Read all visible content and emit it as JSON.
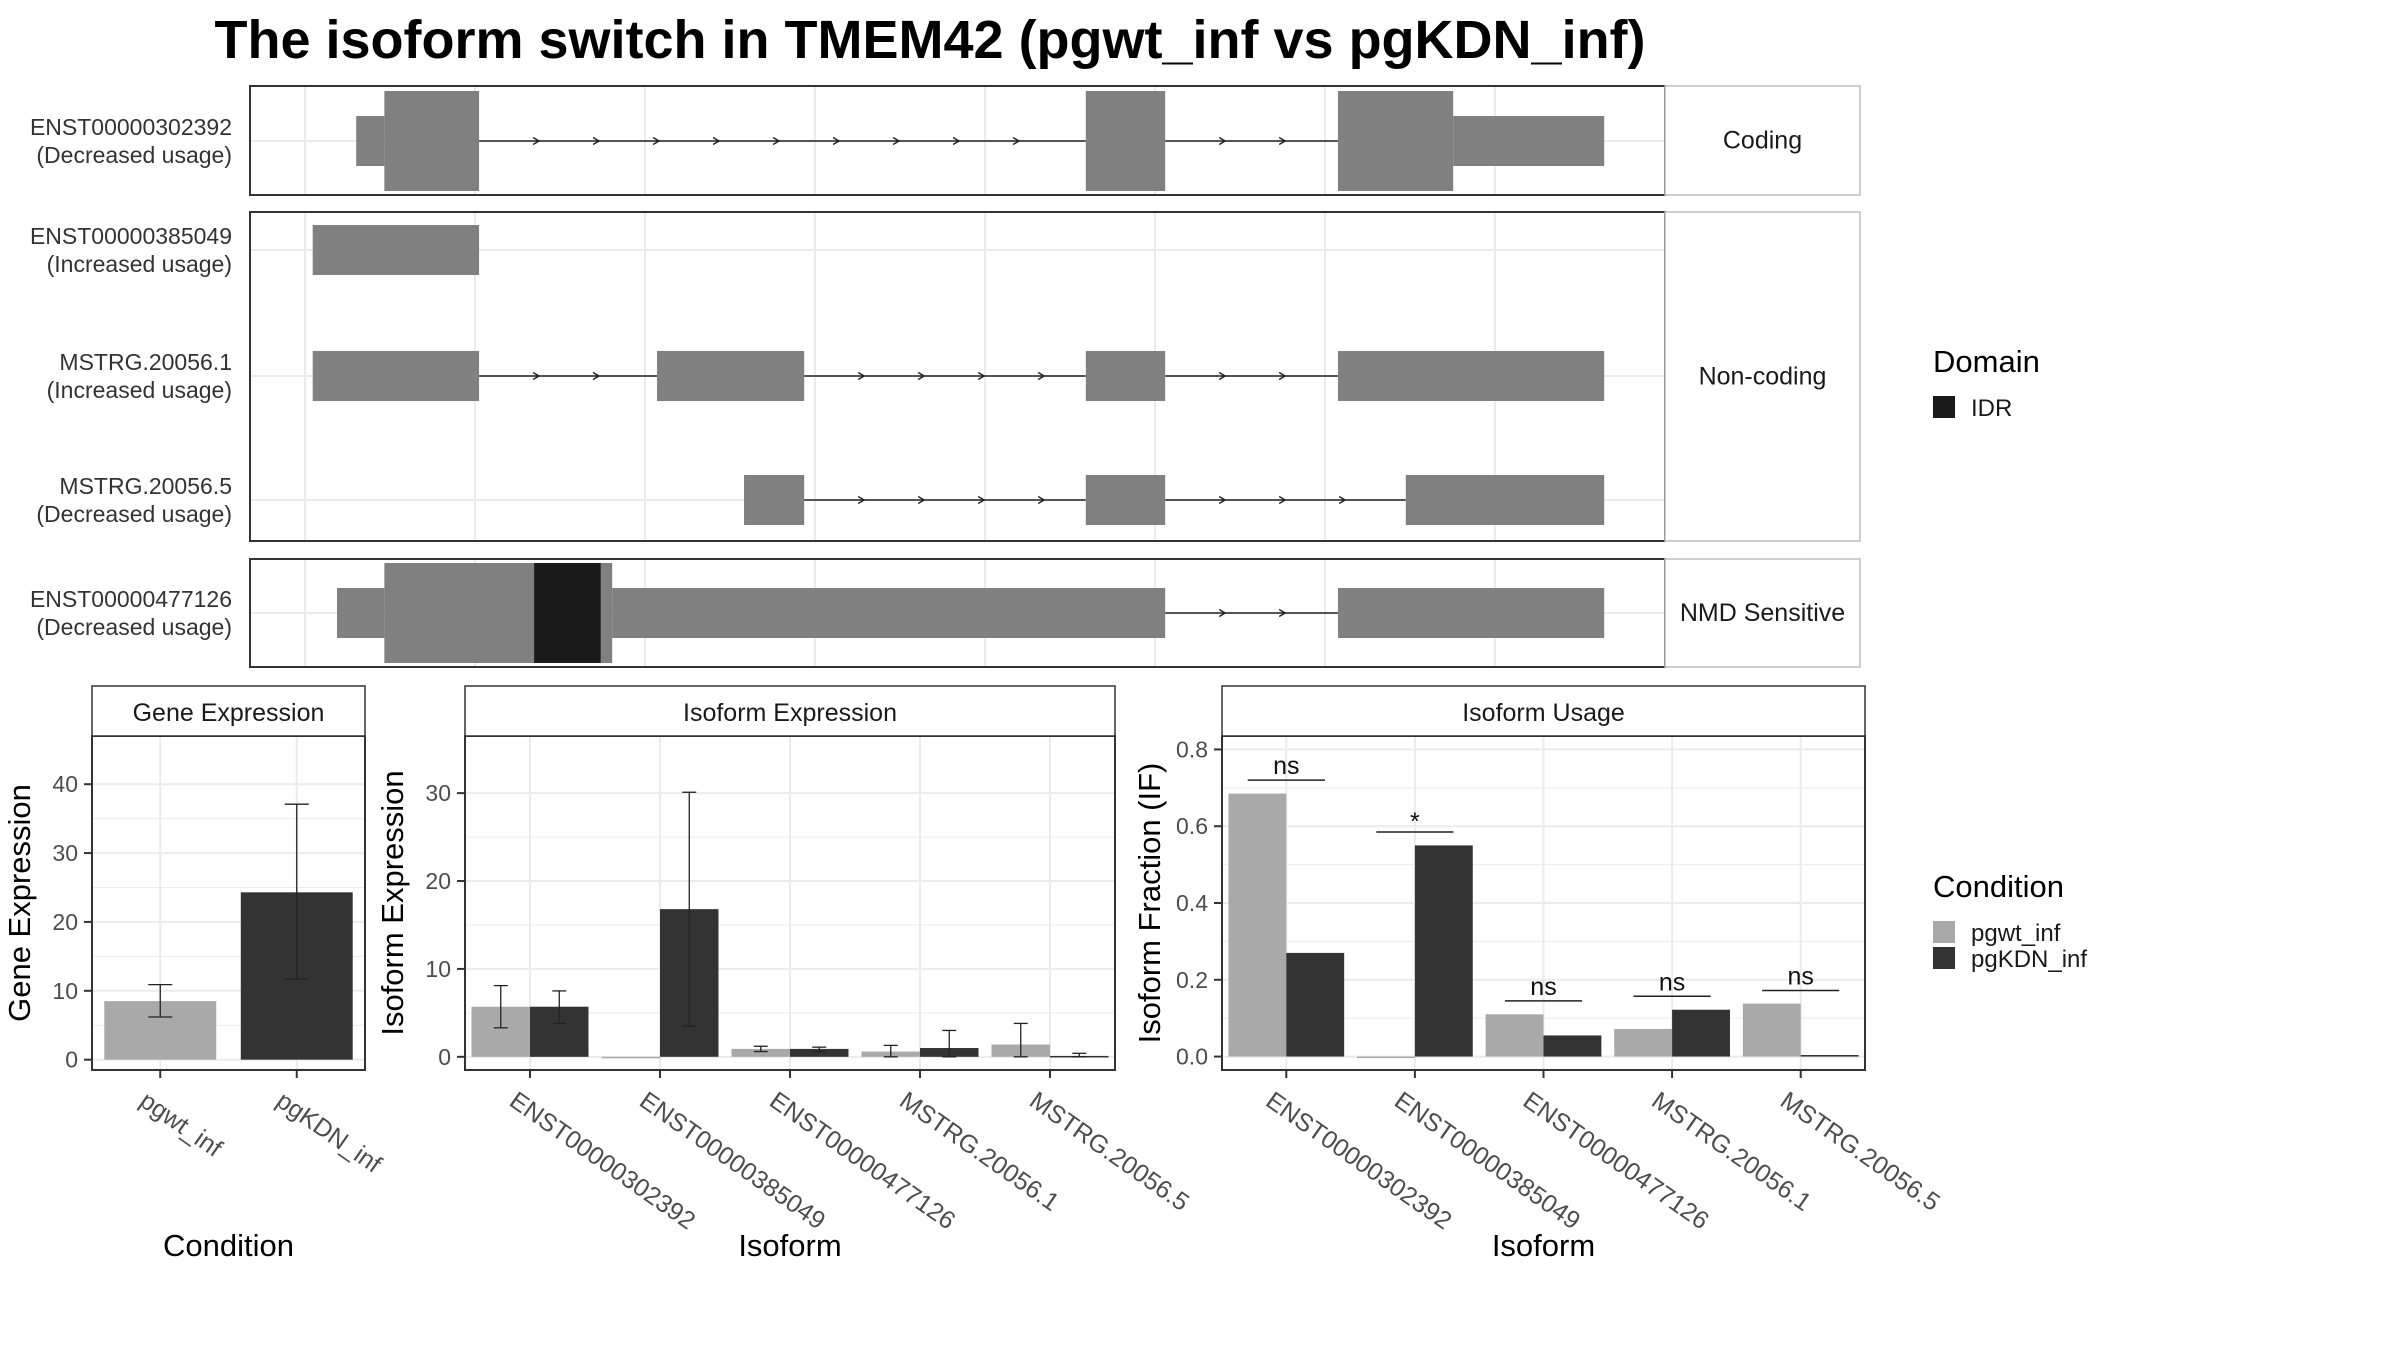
{
  "title": "The isoform switch in TMEM42 (pgwt_inf vs pgKDN_inf)",
  "colors": {
    "exon": "#808080",
    "idr": "#1a1a1a",
    "pgwt_inf": "#a9a9a9",
    "pgKDN_inf": "#333333",
    "grid": "#ebebeb",
    "strip": "#ffffff",
    "panel_border": "#333333"
  },
  "structure": {
    "genomic_range": [
      0,
      1000
    ],
    "groups": [
      {
        "label": "Coding",
        "transcripts": [
          {
            "id": "ENST00000302392",
            "usage": "(Decreased usage)",
            "exons": [
              {
                "start": 40,
                "end": 62,
                "type": "utr"
              },
              {
                "start": 62,
                "end": 136,
                "type": "cds"
              },
              {
                "start": 610,
                "end": 672,
                "type": "cds"
              },
              {
                "start": 807,
                "end": 897,
                "type": "cds"
              },
              {
                "start": 897,
                "end": 1015,
                "type": "utr"
              }
            ],
            "idr": []
          }
        ]
      },
      {
        "label": "Non-coding",
        "transcripts": [
          {
            "id": "ENST00000385049",
            "usage": "(Increased usage)",
            "exons": [
              {
                "start": 6,
                "end": 136,
                "type": "nc"
              }
            ],
            "idr": []
          },
          {
            "id": "MSTRG.20056.1",
            "usage": "(Increased usage)",
            "exons": [
              {
                "start": 6,
                "end": 136,
                "type": "nc"
              },
              {
                "start": 275,
                "end": 390,
                "type": "nc"
              },
              {
                "start": 610,
                "end": 672,
                "type": "nc"
              },
              {
                "start": 807,
                "end": 1015,
                "type": "nc"
              }
            ],
            "idr": []
          },
          {
            "id": "MSTRG.20056.5",
            "usage": "(Decreased usage)",
            "exons": [
              {
                "start": 343,
                "end": 390,
                "type": "nc"
              },
              {
                "start": 610,
                "end": 672,
                "type": "nc"
              },
              {
                "start": 860,
                "end": 1015,
                "type": "nc"
              }
            ],
            "idr": []
          }
        ]
      },
      {
        "label": "NMD Sensitive",
        "transcripts": [
          {
            "id": "ENST00000477126",
            "usage": "(Decreased usage)",
            "exons": [
              {
                "start": 25,
                "end": 62,
                "type": "utr"
              },
              {
                "start": 62,
                "end": 240,
                "type": "cds"
              },
              {
                "start": 240,
                "end": 672,
                "type": "utr"
              },
              {
                "start": 807,
                "end": 1015,
                "type": "utr"
              }
            ],
            "idr": [
              {
                "start": 179,
                "end": 231
              }
            ]
          }
        ]
      }
    ]
  },
  "legends": {
    "domain": {
      "title": "Domain",
      "items": [
        {
          "label": "IDR",
          "color_key": "idr"
        }
      ]
    },
    "condition": {
      "title": "Condition",
      "items": [
        {
          "label": "pgwt_inf",
          "color_key": "pgwt_inf"
        },
        {
          "label": "pgKDN_inf",
          "color_key": "pgKDN_inf"
        }
      ]
    }
  },
  "chart_data": [
    {
      "type": "bar",
      "title": "Gene Expression",
      "xlabel": "Condition",
      "ylabel": "Gene Expression",
      "ylim": [
        -1.5,
        47
      ],
      "yticks": [
        0,
        10,
        20,
        30,
        40
      ],
      "categories": [
        "pgwt_inf",
        "pgKDN_inf"
      ],
      "values": [
        8.5,
        24.3
      ],
      "error_low": [
        6.2,
        11.7
      ],
      "error_high": [
        10.9,
        37.1
      ],
      "color_keys": [
        "pgwt_inf",
        "pgKDN_inf"
      ]
    },
    {
      "type": "bar",
      "title": "Isoform Expression",
      "xlabel": "Isoform",
      "ylabel": "Isoform Expression",
      "ylim": [
        -1.5,
        36.5
      ],
      "yticks": [
        0,
        10,
        20,
        30
      ],
      "categories": [
        "ENST00000302392",
        "ENST00000385049",
        "ENST00000477126",
        "MSTRG.20056.1",
        "MSTRG.20056.5"
      ],
      "series": [
        {
          "name": "pgwt_inf",
          "color_key": "pgwt_inf",
          "values": [
            5.7,
            0.0,
            0.9,
            0.6,
            1.4
          ],
          "error_low": [
            3.3,
            0.0,
            0.6,
            0.0,
            0.0
          ],
          "error_high": [
            8.1,
            0.0,
            1.2,
            1.3,
            3.8
          ]
        },
        {
          "name": "pgKDN_inf",
          "color_key": "pgKDN_inf",
          "values": [
            5.7,
            16.8,
            0.9,
            1.0,
            0.1
          ],
          "error_low": [
            3.8,
            3.5,
            0.6,
            0.0,
            0.0
          ],
          "error_high": [
            7.5,
            30.1,
            1.1,
            3.0,
            0.4
          ]
        }
      ]
    },
    {
      "type": "bar",
      "title": "Isoform Usage",
      "xlabel": "Isoform",
      "ylabel": "Isoform Fraction (IF)",
      "ylim": [
        -0.035,
        0.835
      ],
      "yticks": [
        0.0,
        0.2,
        0.4,
        0.6,
        0.8
      ],
      "ytick_labels": [
        "0.0",
        "0.2",
        "0.4",
        "0.6",
        "0.8"
      ],
      "categories": [
        "ENST00000302392",
        "ENST00000385049",
        "ENST00000477126",
        "MSTRG.20056.1",
        "MSTRG.20056.5"
      ],
      "series": [
        {
          "name": "pgwt_inf",
          "color_key": "pgwt_inf",
          "values": [
            0.685,
            0.0,
            0.11,
            0.072,
            0.138
          ]
        },
        {
          "name": "pgKDN_inf",
          "color_key": "pgKDN_inf",
          "values": [
            0.27,
            0.55,
            0.055,
            0.122,
            0.004
          ]
        }
      ],
      "significance": [
        {
          "label": "ns",
          "y": 0.72
        },
        {
          "label": "*",
          "y": 0.585
        },
        {
          "label": "ns",
          "y": 0.145
        },
        {
          "label": "ns",
          "y": 0.157
        },
        {
          "label": "ns",
          "y": 0.172
        }
      ]
    }
  ]
}
